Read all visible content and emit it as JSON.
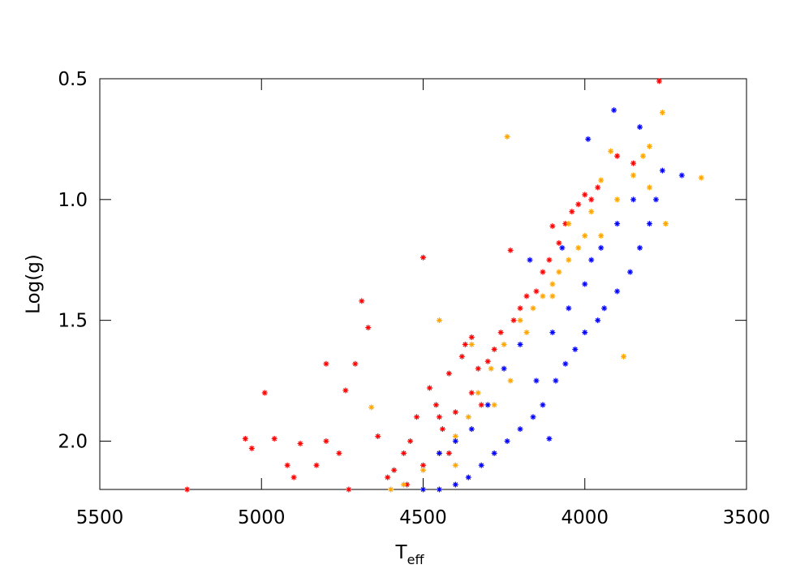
{
  "chart_data": {
    "type": "scatter",
    "xlabel": "T",
    "xlabel_subscript": "eff",
    "ylabel": "Log(g)",
    "xlim": [
      5500,
      3500
    ],
    "xticks": [
      5500,
      5000,
      4500,
      4000,
      3500
    ],
    "ylim": [
      2.2,
      0.5
    ],
    "yticks": [
      0.5,
      {
        "value": 1,
        "label": "1.0"
      },
      1.5,
      {
        "value": 2,
        "label": "2.0"
      }
    ],
    "series": [
      {
        "color": "#ff0000",
        "x": [
          5230,
          5050,
          5030,
          4990,
          4960,
          4920,
          4900,
          4880,
          4830,
          4800,
          4800,
          4760,
          4740,
          4730,
          4710,
          4690,
          4670,
          4640,
          4610,
          4590,
          4560,
          4540,
          4520,
          4500,
          4480,
          4460,
          4440,
          4420,
          4400,
          4380,
          4370,
          4350,
          4330,
          4300,
          4280,
          4260,
          4230,
          4220,
          4200,
          4180,
          4150,
          4130,
          4110,
          4100,
          4080,
          4060,
          4040,
          4020,
          4000,
          3980,
          3960,
          3900,
          3850,
          3770,
          4350,
          4450,
          4500,
          4550,
          4420,
          4320
        ],
        "values": [
          2.2,
          1.99,
          2.03,
          1.8,
          1.99,
          2.1,
          2.15,
          2.01,
          2.1,
          1.68,
          2.0,
          2.05,
          1.79,
          2.2,
          1.68,
          1.42,
          1.53,
          1.98,
          2.15,
          2.12,
          2.05,
          2.0,
          1.9,
          1.24,
          1.78,
          1.85,
          1.95,
          1.72,
          1.88,
          1.65,
          1.6,
          1.8,
          1.7,
          1.67,
          1.62,
          1.55,
          1.21,
          1.5,
          1.45,
          1.4,
          1.38,
          1.3,
          1.25,
          1.11,
          1.18,
          1.1,
          1.05,
          1.02,
          0.98,
          1.0,
          0.95,
          0.82,
          0.85,
          0.51,
          1.57,
          1.9,
          2.1,
          2.18,
          2.05,
          1.85
        ]
      },
      {
        "color": "#ffa500",
        "x": [
          4240,
          3640,
          3760,
          3800,
          3820,
          3880,
          3920,
          3950,
          3980,
          4000,
          4020,
          4050,
          4080,
          4100,
          4130,
          4160,
          4200,
          4250,
          4290,
          4330,
          4360,
          4400,
          4450,
          4500,
          4560,
          4600,
          4660,
          4450,
          4350,
          4280,
          4180,
          4100,
          3850,
          3900,
          3750,
          3800,
          4050,
          3950,
          4230,
          4400
        ],
        "values": [
          0.74,
          0.91,
          0.64,
          0.78,
          0.82,
          1.65,
          0.8,
          0.92,
          1.05,
          1.15,
          1.2,
          1.25,
          1.3,
          1.35,
          1.4,
          1.45,
          1.5,
          1.6,
          1.7,
          1.8,
          1.9,
          1.98,
          2.05,
          2.12,
          2.18,
          2.2,
          1.86,
          1.5,
          1.6,
          1.85,
          1.55,
          1.4,
          0.9,
          1.0,
          1.1,
          0.95,
          1.1,
          1.15,
          1.75,
          2.1
        ]
      },
      {
        "color": "#0000ff",
        "x": [
          3910,
          3990,
          3830,
          3700,
          3760,
          3780,
          3800,
          3830,
          3860,
          3900,
          3940,
          3960,
          4000,
          4030,
          4060,
          4090,
          4110,
          4130,
          4160,
          4200,
          4240,
          4280,
          4320,
          4360,
          4400,
          4450,
          4500,
          4170,
          4200,
          4050,
          4100,
          4000,
          3950,
          3900,
          3850,
          4250,
          4300,
          4350,
          4150,
          4450,
          4400,
          3980,
          4070
        ],
        "values": [
          0.63,
          0.75,
          0.7,
          0.9,
          0.88,
          1.0,
          1.1,
          1.2,
          1.3,
          1.38,
          1.45,
          1.5,
          1.55,
          1.62,
          1.68,
          1.75,
          1.99,
          1.85,
          1.9,
          1.95,
          2.0,
          2.05,
          2.1,
          2.15,
          2.18,
          2.2,
          2.2,
          1.25,
          1.6,
          1.45,
          1.55,
          1.35,
          1.2,
          1.1,
          1.0,
          1.7,
          1.85,
          1.95,
          1.75,
          2.05,
          2.0,
          1.25,
          1.2
        ]
      }
    ]
  }
}
